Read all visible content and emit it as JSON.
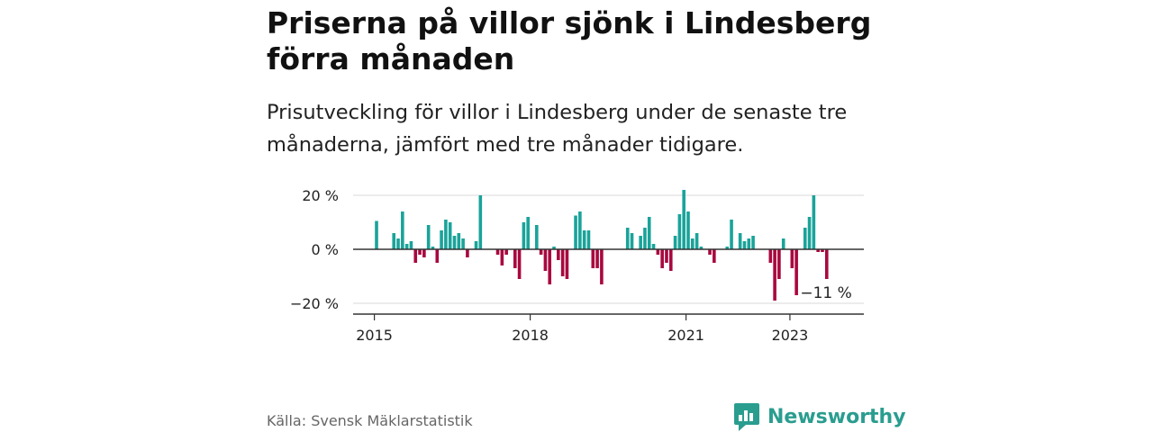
{
  "title": "Priserna på villor sjönk i Lindesberg förra månaden",
  "subtitle": "Prisutveckling för villor i Lindesberg under de senaste tre månaderna, jämfört med tre månader tidigare.",
  "source": "Källa: Svensk Mäklarstatistik",
  "brand": "Newsworthy",
  "colors": {
    "positive": "#1aa39a",
    "negative": "#a8083f",
    "grid": "#d9d9d9",
    "zero": "#333333",
    "brand": "#2a9d8f"
  },
  "chart_data": {
    "type": "bar",
    "x_start": "2015-01",
    "x_ticks": [
      "2015",
      "2018",
      "2021",
      "2023"
    ],
    "y_ticks": [
      "20 %",
      "0 %",
      "−20 %"
    ],
    "ylim": [
      -22,
      22
    ],
    "grid": true,
    "last_label": "−11 %",
    "values": [
      10.5,
      0,
      0,
      0,
      6,
      4,
      14,
      2,
      3,
      -5,
      -2,
      -3,
      9,
      1,
      -5,
      7,
      11,
      10,
      5,
      6,
      4,
      -3,
      0,
      3,
      20,
      0,
      0,
      0,
      -2,
      -6,
      -2,
      0,
      -7,
      -11,
      10,
      12,
      0,
      9,
      -2,
      -8,
      -13,
      1,
      -4,
      -10,
      -11,
      0,
      12.5,
      14,
      7,
      7,
      -7,
      -7,
      -13,
      0,
      0,
      0,
      0,
      0,
      8,
      6,
      0,
      5,
      8,
      12,
      2,
      -2,
      -7,
      -5,
      -8,
      5,
      13,
      22,
      14,
      4,
      6,
      1,
      0,
      -2,
      -5,
      0,
      0,
      1,
      11,
      0,
      6,
      3,
      4,
      5,
      0,
      0,
      0,
      -5,
      -19,
      -11,
      4,
      0,
      -7,
      -17,
      0,
      8,
      12,
      20,
      -1,
      -1,
      -11
    ]
  }
}
